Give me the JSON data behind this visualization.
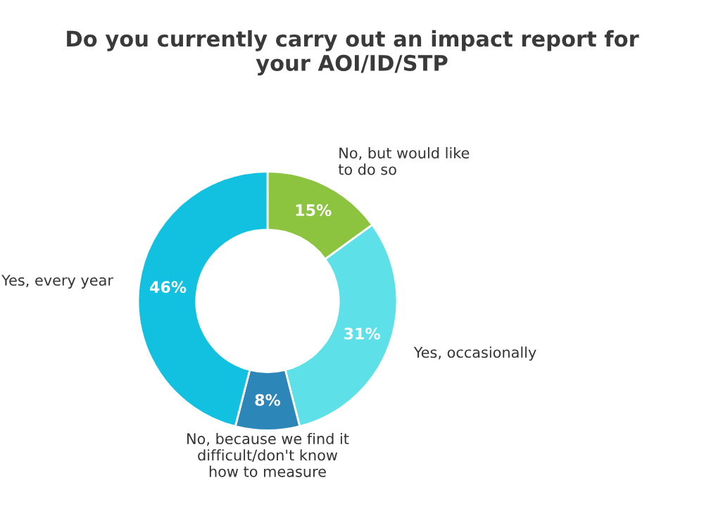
{
  "chart_data": {
    "type": "donut",
    "title": "Do you currently carry out an impact report for\nyour AOI/ID/STP",
    "categories": [
      "No, but would like\nto do so",
      "Yes, occasionally",
      "No, because we find it\ndifficult/don't know\nhow to measure",
      "Yes, every year"
    ],
    "values": [
      15,
      31,
      8,
      46
    ],
    "colors": [
      "#8cc43f",
      "#5ee0e8",
      "#2d86b8",
      "#12c0e0"
    ],
    "value_labels": [
      "15%",
      "31%",
      "8%",
      "46%"
    ],
    "legend": false
  }
}
